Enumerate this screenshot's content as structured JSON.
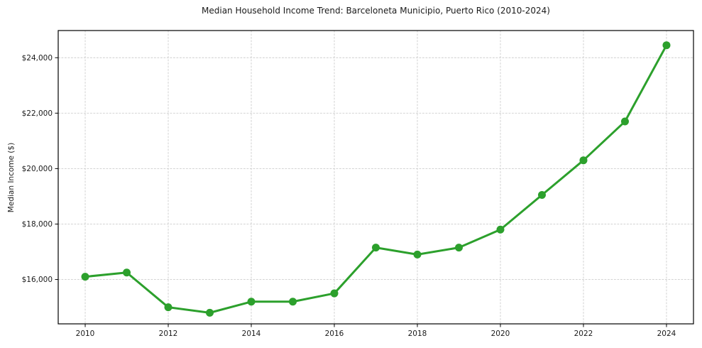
{
  "chart_data": {
    "type": "line",
    "title": "Median Household Income Trend: Barceloneta Municipio, Puerto Rico (2010-2024)",
    "xlabel": "",
    "ylabel": "Median Income ($)",
    "x": [
      2010,
      2011,
      2012,
      2013,
      2014,
      2015,
      2016,
      2017,
      2018,
      2019,
      2020,
      2021,
      2022,
      2023,
      2024
    ],
    "values": [
      16100,
      16250,
      15000,
      14800,
      15200,
      15200,
      15500,
      17150,
      16900,
      17150,
      17800,
      19050,
      20300,
      21700,
      24450
    ],
    "xticks": {
      "values": [
        2010,
        2012,
        2014,
        2016,
        2018,
        2020,
        2022,
        2024
      ],
      "labels": [
        "2010",
        "2012",
        "2014",
        "2016",
        "2018",
        "2020",
        "2022",
        "2024"
      ]
    },
    "yticks": {
      "values": [
        16000,
        18000,
        20000,
        22000,
        24000
      ],
      "labels": [
        "$16,000",
        "$18,000",
        "$20,000",
        "$22,000",
        "$24,000"
      ]
    },
    "xlim": [
      2009.35,
      2024.65
    ],
    "ylim": [
      14400,
      24980
    ],
    "grid": true,
    "grid_style": "dashed",
    "legend": "none",
    "marker": "o",
    "colors": {
      "line": "#2ca02c",
      "marker": "#2ca02c",
      "grid": "#cdcdcd",
      "spine": "#000000",
      "text": "#1a1a1a",
      "background": "#ffffff"
    }
  }
}
